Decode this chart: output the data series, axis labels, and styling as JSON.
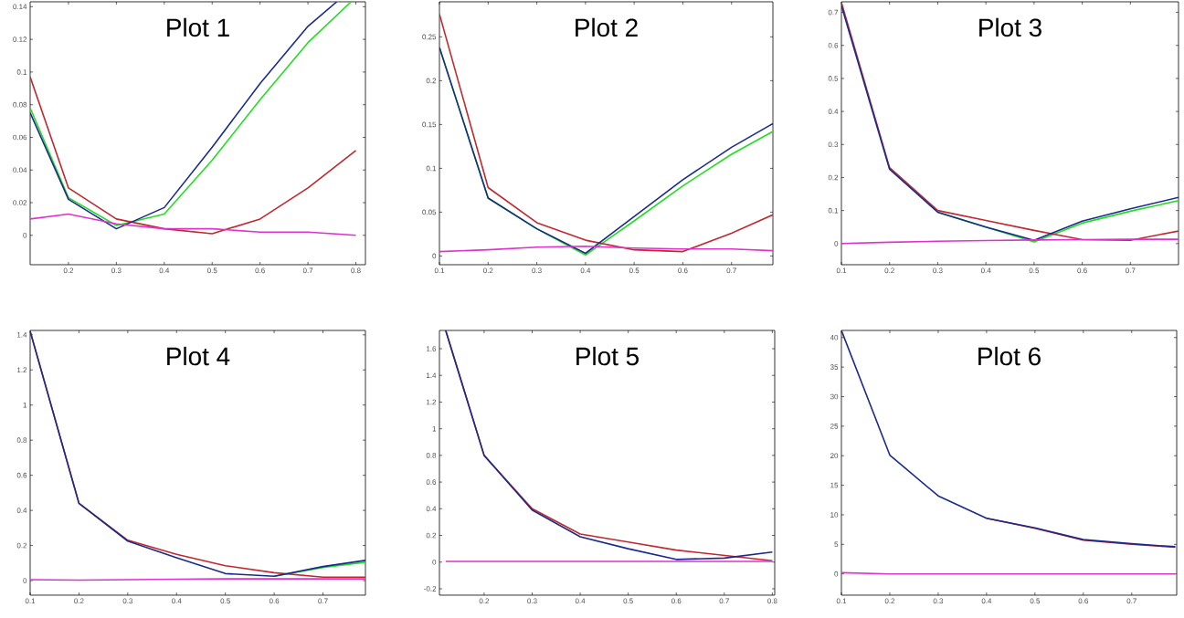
{
  "chart_data": [
    {
      "type": "line",
      "title": "Plot 1",
      "x": [
        0.12,
        0.2,
        0.3,
        0.4,
        0.5,
        0.6,
        0.7,
        0.8
      ],
      "xlim": [
        0.12,
        0.82
      ],
      "ylim": [
        -0.018,
        0.143
      ],
      "xticks": [
        0.2,
        0.3,
        0.4,
        0.5,
        0.6,
        0.7,
        0.8
      ],
      "yticks": [
        0,
        0.02,
        0.04,
        0.06,
        0.08,
        0.1,
        0.12,
        0.14
      ],
      "series": [
        {
          "color": "#22dd22",
          "x": [
            0.12,
            0.2,
            0.3,
            0.4,
            0.5,
            0.6,
            0.7,
            0.79
          ],
          "values": [
            0.078,
            0.023,
            0.006,
            0.013,
            0.046,
            0.083,
            0.118,
            0.143
          ]
        },
        {
          "color": "#c0282d",
          "values": [
            0.097,
            0.029,
            0.01,
            0.004,
            0.001,
            0.01,
            0.029,
            0.052
          ]
        },
        {
          "color": "#1a2a8c",
          "x": [
            0.12,
            0.2,
            0.3,
            0.4,
            0.5,
            0.6,
            0.7,
            0.76
          ],
          "values": [
            0.075,
            0.022,
            0.004,
            0.017,
            0.054,
            0.093,
            0.128,
            0.143
          ]
        },
        {
          "color": "#dd33cc",
          "values": [
            0.01,
            0.013,
            0.007,
            0.004,
            0.004,
            0.002,
            0.002,
            0.0
          ]
        }
      ]
    },
    {
      "type": "line",
      "title": "Plot 2",
      "x": [
        0.1,
        0.2,
        0.3,
        0.4,
        0.5,
        0.6,
        0.7,
        0.785
      ],
      "xlim": [
        0.1,
        0.785
      ],
      "ylim": [
        -0.01,
        0.29
      ],
      "xticks": [
        0.1,
        0.2,
        0.3,
        0.4,
        0.5,
        0.6,
        0.7
      ],
      "yticks": [
        0,
        0.05,
        0.1,
        0.15,
        0.2,
        0.25
      ],
      "series": [
        {
          "color": "#22dd22",
          "values": [
            0.238,
            0.066,
            0.031,
            0.001,
            0.04,
            0.08,
            0.116,
            0.142
          ]
        },
        {
          "color": "#c0282d",
          "values": [
            0.276,
            0.078,
            0.038,
            0.018,
            0.007,
            0.005,
            0.026,
            0.047
          ]
        },
        {
          "color": "#1a2a8c",
          "values": [
            0.238,
            0.066,
            0.031,
            0.003,
            0.045,
            0.087,
            0.124,
            0.151
          ]
        },
        {
          "color": "#dd33cc",
          "values": [
            0.005,
            0.007,
            0.01,
            0.011,
            0.009,
            0.008,
            0.008,
            0.006
          ]
        }
      ]
    },
    {
      "type": "line",
      "title": "Plot 3",
      "x": [
        0.1,
        0.2,
        0.3,
        0.4,
        0.5,
        0.6,
        0.7,
        0.8
      ],
      "xlim": [
        0.1,
        0.8
      ],
      "ylim": [
        -0.064,
        0.732
      ],
      "xticks": [
        0.1,
        0.2,
        0.3,
        0.4,
        0.5,
        0.6,
        0.7
      ],
      "yticks": [
        0,
        0.1,
        0.2,
        0.3,
        0.4,
        0.5,
        0.6,
        0.7
      ],
      "series": [
        {
          "color": "#22dd22",
          "values": [
            null,
            null,
            0.095,
            0.05,
            0.005,
            0.062,
            0.098,
            0.13
          ]
        },
        {
          "color": "#c0282d",
          "values": [
            0.73,
            0.23,
            0.1,
            0.07,
            0.04,
            0.012,
            0.01,
            0.038
          ]
        },
        {
          "color": "#1a2a8c",
          "values": [
            0.72,
            0.225,
            0.095,
            0.05,
            0.01,
            0.068,
            0.105,
            0.14
          ]
        },
        {
          "color": "#dd33cc",
          "values": [
            0.0,
            0.004,
            0.007,
            0.009,
            0.011,
            0.012,
            0.013,
            0.013
          ]
        }
      ]
    },
    {
      "type": "line",
      "title": "Plot 4",
      "x": [
        0.1,
        0.2,
        0.3,
        0.4,
        0.5,
        0.6,
        0.7,
        0.787
      ],
      "xlim": [
        0.1,
        0.787
      ],
      "ylim": [
        -0.083,
        1.425
      ],
      "xticks": [
        0.1,
        0.2,
        0.3,
        0.4,
        0.5,
        0.6,
        0.7
      ],
      "yticks": [
        0,
        0.2,
        0.4,
        0.6,
        0.8,
        1,
        1.2,
        1.4
      ],
      "series": [
        {
          "color": "#22dd22",
          "values": [
            null,
            null,
            null,
            null,
            null,
            0.025,
            0.075,
            0.105
          ]
        },
        {
          "color": "#c0282d",
          "values": [
            1.42,
            0.44,
            0.23,
            0.15,
            0.085,
            0.045,
            0.02,
            0.02
          ]
        },
        {
          "color": "#1a2a8c",
          "values": [
            1.42,
            0.44,
            0.225,
            0.13,
            0.04,
            0.025,
            0.08,
            0.115
          ]
        },
        {
          "color": "#dd33cc",
          "values": [
            0.005,
            0.003,
            0.005,
            0.008,
            0.01,
            0.01,
            0.01,
            0.01
          ]
        }
      ]
    },
    {
      "type": "line",
      "title": "Plot 5",
      "x": [
        0.12,
        0.2,
        0.3,
        0.4,
        0.5,
        0.6,
        0.7,
        0.8
      ],
      "xlim": [
        0.107,
        0.805
      ],
      "ylim": [
        -0.248,
        1.737
      ],
      "xticks": [
        0.2,
        0.3,
        0.4,
        0.5,
        0.6,
        0.7,
        0.8
      ],
      "yticks": [
        -0.2,
        0,
        0.2,
        0.4,
        0.6,
        0.8,
        1,
        1.2,
        1.4,
        1.6
      ],
      "series": [
        {
          "color": "#c0282d",
          "values": [
            1.737,
            0.8,
            0.4,
            0.21,
            0.15,
            0.09,
            0.05,
            0.01
          ]
        },
        {
          "color": "#1a2a8c",
          "values": [
            1.737,
            0.8,
            0.39,
            0.19,
            0.1,
            0.02,
            0.03,
            0.075
          ]
        },
        {
          "color": "#dd33cc",
          "values": [
            0.005,
            0.005,
            0.005,
            0.005,
            0.005,
            0.005,
            0.005,
            0.005
          ]
        }
      ]
    },
    {
      "type": "line",
      "title": "Plot 6",
      "x": [
        0.1,
        0.2,
        0.3,
        0.4,
        0.5,
        0.6,
        0.7,
        0.79
      ],
      "xlim": [
        0.1,
        0.793
      ],
      "ylim": [
        -3.6,
        41.2
      ],
      "xticks": [
        0.1,
        0.2,
        0.3,
        0.4,
        0.5,
        0.6,
        0.7
      ],
      "yticks": [
        0,
        5,
        10,
        15,
        20,
        25,
        30,
        35,
        40
      ],
      "series": [
        {
          "color": "#c0282d",
          "values": [
            null,
            null,
            null,
            9.4,
            7.7,
            5.7,
            5.0,
            4.5
          ]
        },
        {
          "color": "#1a2a8c",
          "values": [
            41.2,
            20.1,
            13.2,
            9.4,
            7.8,
            5.8,
            5.1,
            4.6
          ]
        },
        {
          "color": "#dd33cc",
          "values": [
            0.2,
            0,
            0,
            0,
            0,
            0,
            0,
            0
          ]
        }
      ]
    }
  ]
}
